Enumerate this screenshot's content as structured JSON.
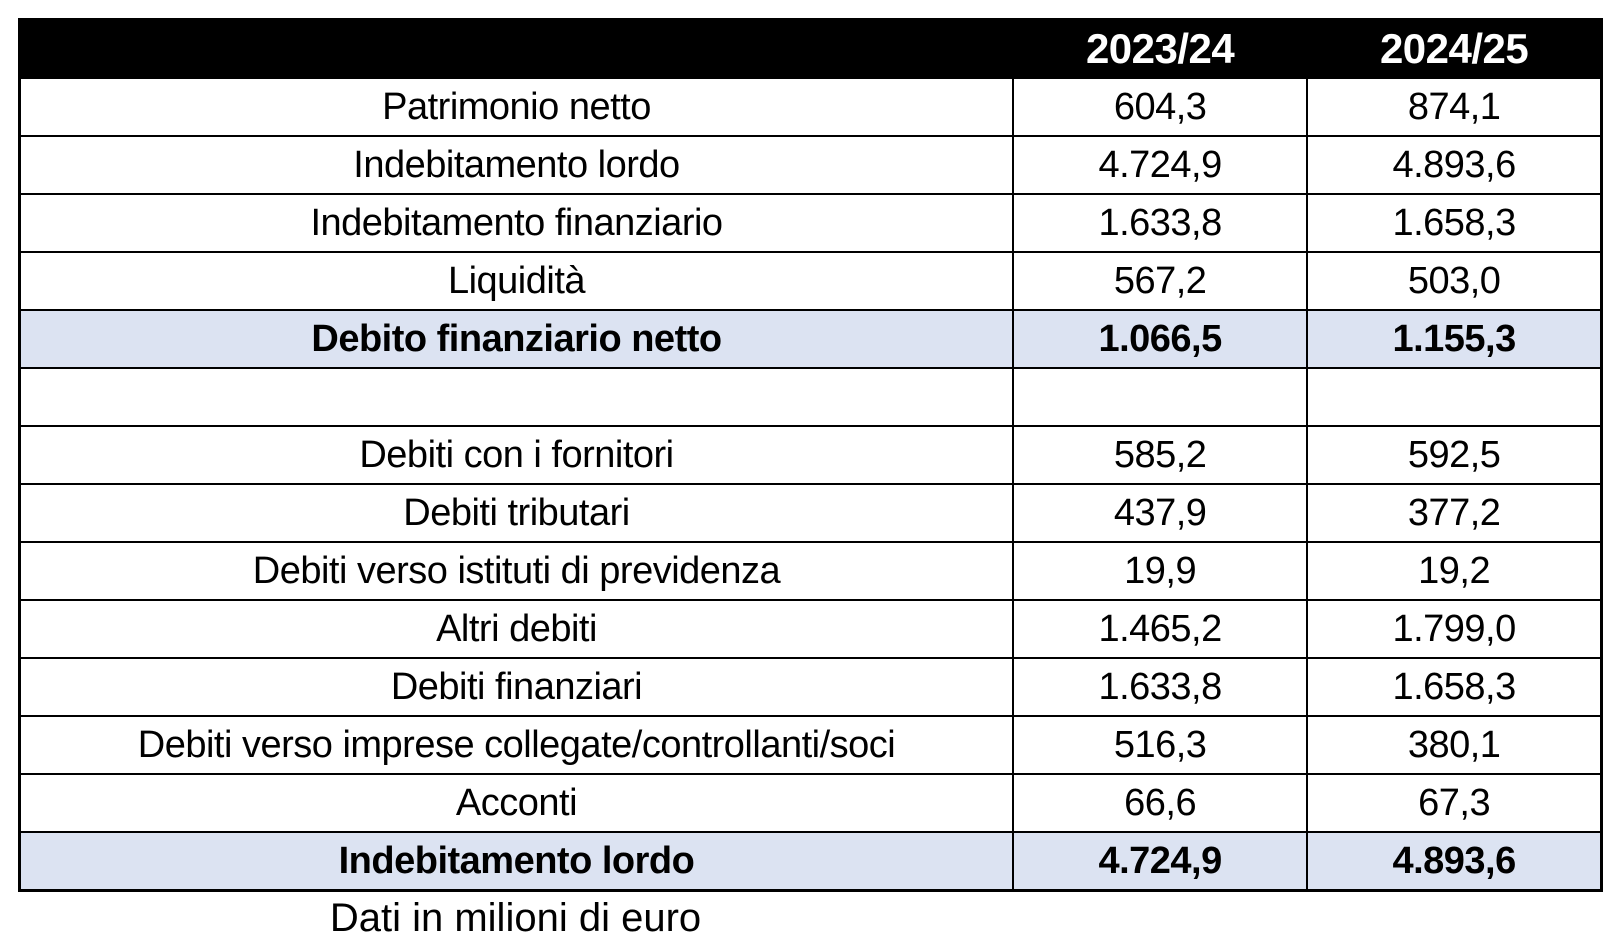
{
  "chart_data": {
    "type": "table",
    "title": "",
    "columns": [
      "",
      "2023/24",
      "2024/25"
    ],
    "rows": [
      {
        "label": "Patrimonio netto",
        "values": [
          "604,3",
          "874,1"
        ],
        "style": "normal"
      },
      {
        "label": "Indebitamento lordo",
        "values": [
          "4.724,9",
          "4.893,6"
        ],
        "style": "normal"
      },
      {
        "label": "Indebitamento finanziario",
        "values": [
          "1.633,8",
          "1.658,3"
        ],
        "style": "normal"
      },
      {
        "label": "Liquidità",
        "values": [
          "567,2",
          "503,0"
        ],
        "style": "normal"
      },
      {
        "label": "Debito finanziario netto",
        "values": [
          "1.066,5",
          "1.155,3"
        ],
        "style": "total"
      },
      {
        "label": "",
        "values": [
          "",
          ""
        ],
        "style": "spacer"
      },
      {
        "label": "Debiti con i fornitori",
        "values": [
          "585,2",
          "592,5"
        ],
        "style": "normal"
      },
      {
        "label": "Debiti tributari",
        "values": [
          "437,9",
          "377,2"
        ],
        "style": "normal"
      },
      {
        "label": "Debiti verso istituti di previdenza",
        "values": [
          "19,9",
          "19,2"
        ],
        "style": "normal"
      },
      {
        "label": "Altri debiti",
        "values": [
          "1.465,2",
          "1.799,0"
        ],
        "style": "normal"
      },
      {
        "label": "Debiti finanziari",
        "values": [
          "1.633,8",
          "1.658,3"
        ],
        "style": "normal"
      },
      {
        "label": "Debiti verso imprese collegate/controllanti/soci",
        "values": [
          "516,3",
          "380,1"
        ],
        "style": "normal"
      },
      {
        "label": "Acconti",
        "values": [
          "66,6",
          "67,3"
        ],
        "style": "normal"
      },
      {
        "label": "Indebitamento lordo",
        "values": [
          "4.724,9",
          "4.893,6"
        ],
        "style": "total"
      }
    ],
    "note": "Dati in milioni di euro",
    "layout": {
      "grid": "on",
      "header_row": true
    }
  },
  "colors": {
    "background": "#ffffff",
    "header_bg": "#000000",
    "header_text": "#ffffff",
    "highlight_row_bg": "#dce3f2",
    "border": "#000000",
    "text": "#000000"
  }
}
